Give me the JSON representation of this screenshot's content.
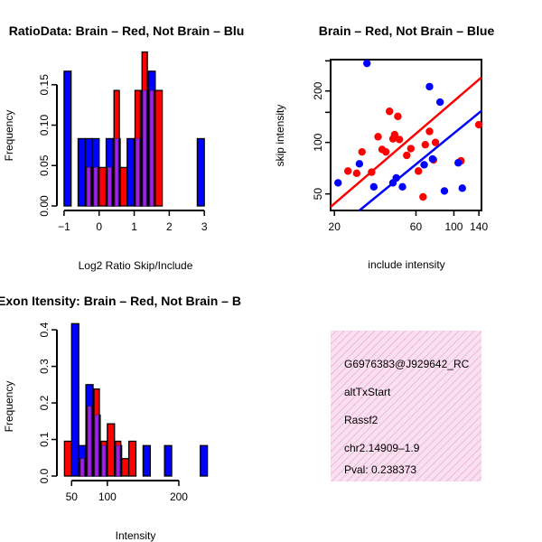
{
  "colors": {
    "red": "#ff0000",
    "blue": "#0000ff",
    "overlap": "#a020f0",
    "pval": "#8b0000",
    "info_bg": "#f8e0f0",
    "info_hatch": "#ee99cc"
  },
  "chart_data": [
    {
      "type": "bar",
      "id": "ratio",
      "title": "RatioData: Brain – Red, Not Brain – Blu",
      "xlabel": "Log2 Ratio Skip/Include",
      "ylabel": "Frequency",
      "xlim": [
        -1.05,
        3.15
      ],
      "ylim": [
        0,
        0.19
      ],
      "xticks": [
        -1,
        0,
        1,
        2,
        3
      ],
      "xtick_labels": [
        "−1",
        "0",
        "1",
        "2",
        "3"
      ],
      "yticks": [
        0,
        0.05,
        0.1,
        0.15
      ],
      "ytick_labels": [
        "0.00",
        "0.05",
        "0.10",
        "0.15"
      ],
      "bin_width": 0.2,
      "bin_starts": [
        -1.0,
        -0.8,
        -0.6,
        -0.4,
        -0.2,
        0.0,
        0.2,
        0.4,
        0.6,
        0.8,
        1.0,
        1.2,
        1.4,
        1.6,
        1.8,
        2.0,
        2.2,
        2.4,
        2.6,
        2.8
      ],
      "series": [
        {
          "name": "Not Brain",
          "color": "blue",
          "values": [
            0.1667,
            0,
            0.0833,
            0.0833,
            0.0833,
            0,
            0.0833,
            0.0833,
            0,
            0.0833,
            0.0833,
            0.1429,
            0.1667,
            0,
            0,
            0,
            0,
            0,
            0,
            0.0833
          ]
        },
        {
          "name": "Brain",
          "color": "red",
          "values": [
            0,
            0,
            0,
            0.0476,
            0.0476,
            0.0476,
            0.0476,
            0.1429,
            0.0476,
            0,
            0.1429,
            0.1905,
            0.1429,
            0.1429,
            0,
            0,
            0,
            0,
            0,
            0
          ]
        }
      ]
    },
    {
      "type": "scatter",
      "id": "scatter",
      "title": "Brain – Red, Not Brain – Blue",
      "xlabel": "include intensity",
      "ylabel": "skip intensity",
      "log": true,
      "xlim": [
        19,
        145
      ],
      "ylim": [
        40,
        305
      ],
      "xticks": [
        20,
        60,
        100,
        140
      ],
      "yticks": [
        50,
        100,
        200
      ],
      "series": [
        {
          "name": "Brain",
          "color": "red",
          "x": [
            24,
            27,
            29,
            33,
            36,
            38,
            40,
            42,
            44,
            45,
            47,
            48,
            53,
            56,
            62,
            66,
            68,
            72,
            76,
            78,
            110,
            140
          ],
          "y": [
            68,
            66,
            88,
            67,
            108,
            91,
            88,
            152,
            105,
            111,
            142,
            104,
            84,
            92,
            68,
            48,
            97,
            116,
            79,
            100,
            78,
            127
          ]
        },
        {
          "name": "Not Brain",
          "color": "blue",
          "x": [
            21,
            28,
            31,
            34,
            44,
            46,
            50,
            67,
            72,
            75,
            83,
            88,
            106,
            112
          ],
          "y": [
            58,
            75,
            290,
            55,
            58,
            62,
            55,
            74,
            212,
            80,
            172,
            52,
            76,
            54
          ]
        }
      ],
      "regression": [
        {
          "color": "red",
          "from": [
            19,
            42
          ],
          "to": [
            145,
            240
          ]
        },
        {
          "color": "blue",
          "from": [
            28,
            40
          ],
          "to": [
            145,
            153
          ]
        }
      ]
    },
    {
      "type": "bar",
      "id": "intensity",
      "title": "Exon Itensity: Brain – Red, Not Brain – B",
      "xlabel": "Intensity",
      "ylabel": "Frequency",
      "xlim": [
        37,
        243
      ],
      "ylim": [
        0,
        0.42
      ],
      "xticks": [
        50,
        100,
        200
      ],
      "xtick_labels": [
        "50",
        "100",
        "200"
      ],
      "yticks": [
        0,
        0.1,
        0.2,
        0.3,
        0.4
      ],
      "ytick_labels": [
        "0.0",
        "0.1",
        "0.2",
        "0.3",
        "0.4"
      ],
      "bin_width": 10,
      "bin_starts": [
        40,
        50,
        60,
        70,
        80,
        90,
        100,
        110,
        120,
        130,
        140,
        150,
        160,
        170,
        180,
        190,
        200,
        210,
        220,
        230
      ],
      "series": [
        {
          "name": "Not Brain",
          "color": "blue",
          "values": [
            0,
            0.4167,
            0.0833,
            0.25,
            0.1667,
            0.0833,
            0,
            0.0833,
            0,
            0,
            0,
            0.0833,
            0,
            0,
            0.0833,
            0,
            0,
            0,
            0,
            0.0833
          ]
        },
        {
          "name": "Brain",
          "color": "red",
          "values": [
            0.0952,
            0,
            0.0476,
            0.1905,
            0.2381,
            0.0952,
            0.1429,
            0.0952,
            0.0476,
            0.0952,
            0,
            0,
            0,
            0,
            0,
            0,
            0,
            0,
            0,
            0
          ]
        }
      ]
    }
  ],
  "info": {
    "probe_id": "G6976383@J929642_RC",
    "event_type": "altTxStart",
    "gene": "Rassf2",
    "location": "chr2.14909–1.9",
    "pval": "Pval: 0.238373"
  }
}
